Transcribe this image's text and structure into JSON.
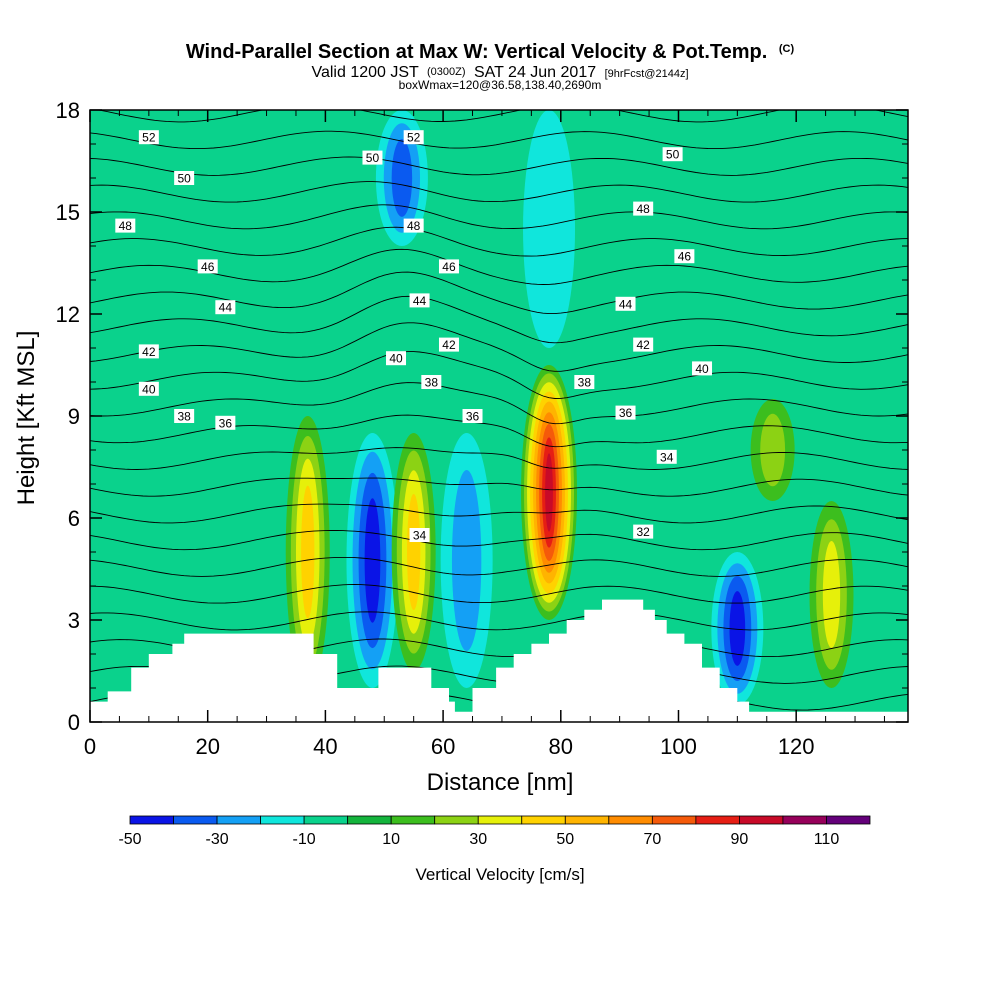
{
  "title": {
    "main": "Wind-Parallel Section at Max W: Vertical Velocity & Pot.Temp.",
    "copyright": "(C)",
    "valid_prefix": "Valid 1200 JST",
    "valid_z": "(0300Z)",
    "valid_date": "SAT 24 Jun 2017",
    "forecast": "[9hrFcst@2144z]",
    "box": "boxWmax=120@36.58,138.40,2690m"
  },
  "chart_data": {
    "type": "heatmap",
    "xlabel": "Distance [nm]",
    "ylabel": "Height [Kft MSL]",
    "xlim": [
      0,
      139
    ],
    "ylim": [
      0,
      18
    ],
    "x_ticks": [
      0,
      20,
      40,
      60,
      80,
      100,
      120
    ],
    "y_ticks": [
      0,
      3,
      6,
      9,
      12,
      15,
      18
    ],
    "colorbar": {
      "label": "Vertical Velocity [cm/s]",
      "levels": [
        -50,
        -40,
        -30,
        -20,
        -10,
        0,
        10,
        20,
        30,
        40,
        50,
        60,
        70,
        80,
        90,
        100,
        110,
        120
      ],
      "tick_labels": [
        "-50",
        "-30",
        "-10",
        "10",
        "30",
        "50",
        "70",
        "90",
        "110"
      ],
      "colors": [
        "#0a14e6",
        "#0a5af0",
        "#14a0f5",
        "#10e6dc",
        "#0ad28c",
        "#14b43c",
        "#3cbe1e",
        "#8cd214",
        "#e6f00a",
        "#ffd200",
        "#ffb400",
        "#ff8c00",
        "#f55a0a",
        "#e61e14",
        "#c80a28",
        "#96005a",
        "#64007a"
      ]
    },
    "updrafts": [
      {
        "x": 37,
        "zlo": 1,
        "zhi": 9,
        "peak": 40
      },
      {
        "x": 55,
        "zlo": 1.5,
        "zhi": 8.5,
        "peak": 42
      },
      {
        "x": 78,
        "zlo": 3,
        "zhi": 10.5,
        "peak": 95
      },
      {
        "x": 126,
        "zlo": 1,
        "zhi": 6.5,
        "peak": 35
      },
      {
        "x": 116,
        "zlo": 6.5,
        "zhi": 9.5,
        "peak": 22
      }
    ],
    "downdrafts": [
      {
        "x": 48,
        "zlo": 1,
        "zhi": 8.5,
        "peak": -47
      },
      {
        "x": 64,
        "zlo": 1,
        "zhi": 8.5,
        "peak": -25
      },
      {
        "x": 110,
        "zlo": 0.5,
        "zhi": 5,
        "peak": -48
      },
      {
        "x": 53,
        "zlo": 14,
        "zhi": 18,
        "peak": -33
      },
      {
        "x": 78,
        "zlo": 11,
        "zhi": 18,
        "peak": -18
      }
    ],
    "terrain": [
      {
        "x": 0,
        "z": 0.6
      },
      {
        "x": 3,
        "z": 0.9
      },
      {
        "x": 7,
        "z": 1.6
      },
      {
        "x": 10,
        "z": 2.0
      },
      {
        "x": 14,
        "z": 2.3
      },
      {
        "x": 16,
        "z": 2.6
      },
      {
        "x": 38,
        "z": 2.0
      },
      {
        "x": 42,
        "z": 1.0
      },
      {
        "x": 49,
        "z": 1.6
      },
      {
        "x": 58,
        "z": 1.0
      },
      {
        "x": 61,
        "z": 0.6
      },
      {
        "x": 62,
        "z": 0.3
      },
      {
        "x": 65,
        "z": 1.0
      },
      {
        "x": 69,
        "z": 1.6
      },
      {
        "x": 72,
        "z": 2.0
      },
      {
        "x": 75,
        "z": 2.3
      },
      {
        "x": 78,
        "z": 2.6
      },
      {
        "x": 81,
        "z": 3.0
      },
      {
        "x": 84,
        "z": 3.3
      },
      {
        "x": 87,
        "z": 3.6
      },
      {
        "x": 94,
        "z": 3.3
      },
      {
        "x": 96,
        "z": 3.0
      },
      {
        "x": 98,
        "z": 2.6
      },
      {
        "x": 101,
        "z": 2.3
      },
      {
        "x": 104,
        "z": 1.6
      },
      {
        "x": 107,
        "z": 1.0
      },
      {
        "x": 110,
        "z": 0.6
      },
      {
        "x": 112,
        "z": 0.3
      },
      {
        "x": 120,
        "z": 0.3
      },
      {
        "x": 139,
        "z": 0.3
      }
    ],
    "isentropes": {
      "units": "K (minus 273)",
      "levels": [
        31,
        32,
        33,
        34,
        35,
        36,
        37,
        38,
        39,
        40,
        41,
        42,
        43,
        44,
        45,
        46,
        47,
        48,
        49,
        50,
        51,
        52,
        53
      ],
      "labels": [
        {
          "text": "52",
          "x": 10,
          "z": 17.2
        },
        {
          "text": "52",
          "x": 55,
          "z": 17.2
        },
        {
          "text": "50",
          "x": 16,
          "z": 16.0
        },
        {
          "text": "50",
          "x": 48,
          "z": 16.6
        },
        {
          "text": "50",
          "x": 99,
          "z": 16.7
        },
        {
          "text": "48",
          "x": 6,
          "z": 14.6
        },
        {
          "text": "48",
          "x": 55,
          "z": 14.6
        },
        {
          "text": "48",
          "x": 94,
          "z": 15.1
        },
        {
          "text": "46",
          "x": 20,
          "z": 13.4
        },
        {
          "text": "46",
          "x": 61,
          "z": 13.4
        },
        {
          "text": "46",
          "x": 101,
          "z": 13.7
        },
        {
          "text": "44",
          "x": 23,
          "z": 12.2
        },
        {
          "text": "44",
          "x": 56,
          "z": 12.4
        },
        {
          "text": "44",
          "x": 91,
          "z": 12.3
        },
        {
          "text": "42",
          "x": 10,
          "z": 10.9
        },
        {
          "text": "42",
          "x": 61,
          "z": 11.1
        },
        {
          "text": "42",
          "x": 94,
          "z": 11.1
        },
        {
          "text": "40",
          "x": 10,
          "z": 9.8
        },
        {
          "text": "40",
          "x": 52,
          "z": 10.7
        },
        {
          "text": "40",
          "x": 104,
          "z": 10.4
        },
        {
          "text": "38",
          "x": 16,
          "z": 9.0
        },
        {
          "text": "38",
          "x": 58,
          "z": 10.0
        },
        {
          "text": "38",
          "x": 84,
          "z": 10.0
        },
        {
          "text": "36",
          "x": 23,
          "z": 8.8
        },
        {
          "text": "36",
          "x": 65,
          "z": 9.0
        },
        {
          "text": "36",
          "x": 91,
          "z": 9.1
        },
        {
          "text": "34",
          "x": 56,
          "z": 5.5
        },
        {
          "text": "34",
          "x": 98,
          "z": 7.8
        },
        {
          "text": "32",
          "x": 94,
          "z": 5.6
        }
      ]
    }
  }
}
